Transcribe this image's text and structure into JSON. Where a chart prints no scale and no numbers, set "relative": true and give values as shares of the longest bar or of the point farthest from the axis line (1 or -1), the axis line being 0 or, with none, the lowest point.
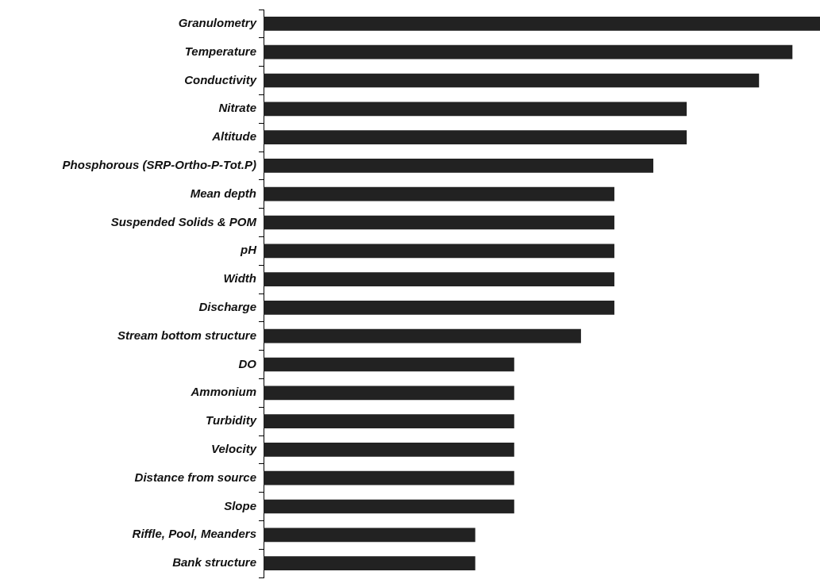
{
  "chart_data": {
    "type": "bar",
    "orientation": "horizontal",
    "relative": true,
    "color": "#222222",
    "categories": [
      "Granulometry",
      "Temperature",
      "Conductivity",
      "Nitrate",
      "Altitude",
      "Phosphorous (SRP-Ortho-P-Tot.P)",
      "Mean depth",
      "Suspended Solids & POM",
      "pH",
      "Width",
      "Discharge",
      "Stream bottom structure",
      "DO",
      "Ammonium",
      "Turbidity",
      "Velocity",
      "Distance from source",
      "Slope",
      "Riffle, Pool, Meanders",
      "Bank structure"
    ],
    "values": [
      1,
      0.95,
      0.89,
      0.76,
      0.76,
      0.7,
      0.63,
      0.63,
      0.63,
      0.63,
      0.63,
      0.57,
      0.45,
      0.45,
      0.45,
      0.45,
      0.45,
      0.45,
      0.38,
      0.38
    ]
  }
}
